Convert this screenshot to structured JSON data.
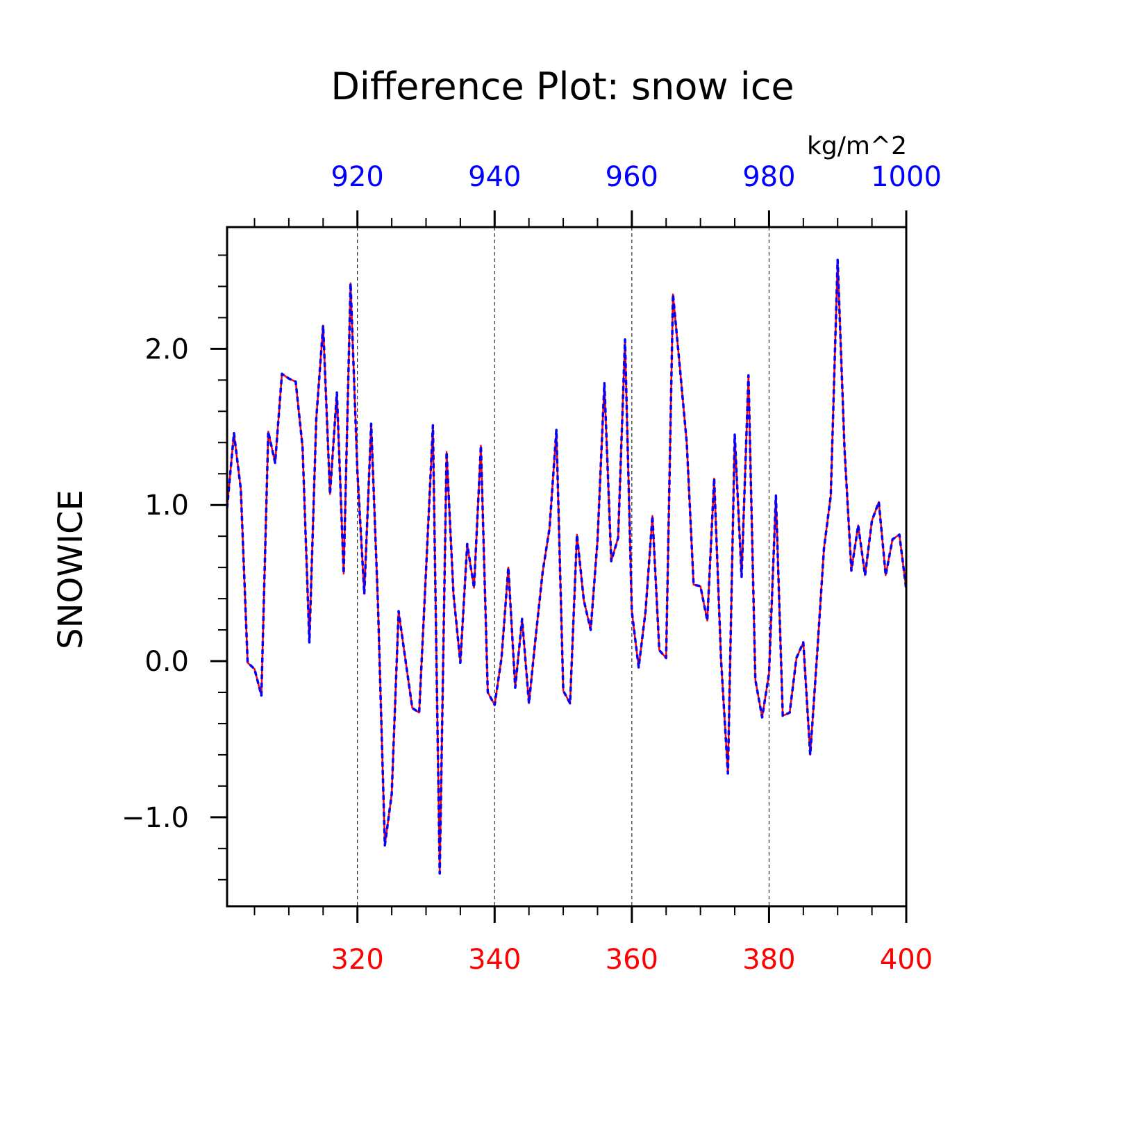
{
  "chart_data": {
    "type": "line",
    "title": "Difference Plot: snow ice",
    "units": "kg/m^2",
    "ylabel": "SNOWICE",
    "ylim": [
      -1.57,
      2.78
    ],
    "yticks": [
      -1.0,
      0.0,
      1.0,
      2.0
    ],
    "ytick_labels": [
      "−1.0",
      "0.0",
      "1.0",
      "2.0"
    ],
    "bottom_axis": {
      "xlim": [
        301,
        400
      ],
      "ticks": [
        320,
        340,
        360,
        380,
        400
      ],
      "tick_labels": [
        "320",
        "340",
        "360",
        "380",
        "400"
      ],
      "color": "#ff0000"
    },
    "top_axis": {
      "xlim": [
        901,
        1000
      ],
      "ticks": [
        920,
        940,
        960,
        980,
        1000
      ],
      "tick_labels": [
        "920",
        "940",
        "960",
        "980",
        "1000"
      ],
      "color": "#0000ff"
    },
    "grid": "vertical dashed at major x ticks",
    "x": [
      301,
      302,
      303,
      304,
      305,
      306,
      307,
      308,
      309,
      310,
      311,
      312,
      313,
      314,
      315,
      316,
      317,
      318,
      319,
      320,
      321,
      322,
      323,
      324,
      325,
      326,
      327,
      328,
      329,
      330,
      331,
      332,
      333,
      334,
      335,
      336,
      337,
      338,
      339,
      340,
      341,
      342,
      343,
      344,
      345,
      346,
      347,
      348,
      349,
      350,
      351,
      352,
      353,
      354,
      355,
      356,
      357,
      358,
      359,
      360,
      361,
      362,
      363,
      364,
      365,
      366,
      367,
      368,
      369,
      370,
      371,
      372,
      373,
      374,
      375,
      376,
      377,
      378,
      379,
      380,
      381,
      382,
      383,
      384,
      385,
      386,
      387,
      388,
      389,
      390,
      391,
      392,
      393,
      394,
      395,
      396,
      397,
      398,
      399,
      400
    ],
    "series": [
      {
        "color": "#ff0000",
        "line_style": "solid",
        "values": [
          0.98,
          1.46,
          1.1,
          -0.01,
          -0.05,
          -0.22,
          1.47,
          1.27,
          1.84,
          1.81,
          1.79,
          1.37,
          0.12,
          1.55,
          2.15,
          1.07,
          1.72,
          0.56,
          2.42,
          1.21,
          0.43,
          1.52,
          0.36,
          -1.18,
          -0.85,
          0.32,
          0.01,
          -0.3,
          -0.33,
          0.58,
          1.51,
          -1.36,
          1.34,
          0.43,
          -0.01,
          0.75,
          0.47,
          1.38,
          -0.2,
          -0.28,
          0.02,
          0.6,
          -0.17,
          0.27,
          -0.27,
          0.16,
          0.57,
          0.85,
          1.48,
          -0.19,
          -0.27,
          0.81,
          0.39,
          0.2,
          0.78,
          1.78,
          0.64,
          0.79,
          2.06,
          0.32,
          -0.04,
          0.32,
          0.93,
          0.07,
          0.02,
          2.35,
          1.88,
          1.4,
          0.49,
          0.48,
          0.26,
          1.17,
          0.01,
          -0.72,
          1.45,
          0.54,
          1.83,
          -0.12,
          -0.36,
          -0.08,
          1.06,
          -0.35,
          -0.33,
          0.02,
          0.12,
          -0.6,
          0.04,
          0.72,
          1.06,
          2.57,
          1.36,
          0.58,
          0.87,
          0.55,
          0.9,
          1.02,
          0.55,
          0.78,
          0.81,
          0.46
        ]
      },
      {
        "color": "#0000ff",
        "line_style": "dashed",
        "values": [
          0.98,
          1.46,
          1.1,
          -0.01,
          -0.05,
          -0.22,
          1.47,
          1.27,
          1.84,
          1.81,
          1.79,
          1.37,
          0.12,
          1.55,
          2.15,
          1.07,
          1.72,
          0.56,
          2.42,
          1.21,
          0.43,
          1.52,
          0.36,
          -1.18,
          -0.85,
          0.32,
          0.01,
          -0.3,
          -0.33,
          0.58,
          1.51,
          -1.36,
          1.34,
          0.43,
          -0.01,
          0.75,
          0.47,
          1.38,
          -0.2,
          -0.28,
          0.02,
          0.6,
          -0.17,
          0.27,
          -0.27,
          0.16,
          0.57,
          0.85,
          1.48,
          -0.19,
          -0.27,
          0.81,
          0.39,
          0.2,
          0.78,
          1.78,
          0.64,
          0.79,
          2.06,
          0.32,
          -0.04,
          0.32,
          0.93,
          0.07,
          0.02,
          2.35,
          1.88,
          1.4,
          0.49,
          0.48,
          0.26,
          1.17,
          0.01,
          -0.72,
          1.45,
          0.54,
          1.83,
          -0.12,
          -0.36,
          -0.08,
          1.06,
          -0.35,
          -0.33,
          0.02,
          0.12,
          -0.6,
          0.04,
          0.72,
          1.06,
          2.57,
          1.36,
          0.58,
          0.87,
          0.55,
          0.9,
          1.02,
          0.55,
          0.78,
          0.81,
          0.46
        ]
      }
    ]
  }
}
